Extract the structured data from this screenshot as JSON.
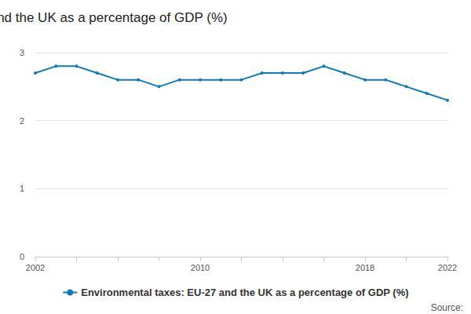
{
  "chart_data": {
    "type": "line",
    "title": "Environmental taxes: EU-27 and the UK as a percentage of GDP (%)",
    "categories": [
      "2002",
      null,
      null,
      null,
      null,
      null,
      null,
      null,
      "2010",
      null,
      null,
      null,
      null,
      null,
      null,
      null,
      "2018",
      null,
      null,
      null,
      "2022"
    ],
    "series": [
      {
        "name": "Environmental taxes: EU-27 and the UK as a percentage of GDP (%)",
        "color": "#0b7bbc",
        "values": [
          2.7,
          2.8,
          2.8,
          2.7,
          2.6,
          2.6,
          2.5,
          2.6,
          2.6,
          2.6,
          2.6,
          2.7,
          2.7,
          2.7,
          2.8,
          2.7,
          2.6,
          2.6,
          2.5,
          2.4,
          2.3
        ]
      }
    ],
    "ylim": [
      0,
      3
    ],
    "yticks": [
      0,
      1,
      2,
      3
    ],
    "grid": true,
    "legend": "bottom",
    "marker": "circle",
    "annotations": [
      "Source:"
    ]
  }
}
